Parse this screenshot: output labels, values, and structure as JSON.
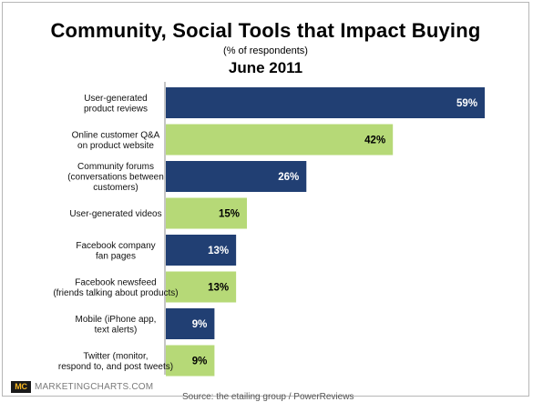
{
  "chart_data": {
    "type": "bar",
    "orientation": "horizontal",
    "title": "Community, Social Tools that Impact Buying",
    "subtitle": "(% of respondents)",
    "date": "June 2011",
    "categories": [
      [
        "User-generated",
        "product reviews"
      ],
      [
        "Online customer Q&A",
        "on product website"
      ],
      [
        "Community forums",
        "(conversations between",
        "customers)"
      ],
      [
        "User-generated videos"
      ],
      [
        "Facebook company",
        "fan pages"
      ],
      [
        "Facebook newsfeed",
        "(friends talking about products)"
      ],
      [
        "Mobile (iPhone app,",
        "text alerts)"
      ],
      [
        "Twitter (monitor,",
        "respond to, and post tweets)"
      ]
    ],
    "values": [
      59,
      42,
      26,
      15,
      13,
      13,
      9,
      9
    ],
    "data_labels": [
      "59%",
      "42%",
      "26%",
      "15%",
      "13%",
      "13%",
      "9%",
      "9%"
    ],
    "bar_colors": [
      "#213f73",
      "#b6d977",
      "#213f73",
      "#b6d977",
      "#213f73",
      "#b6d977",
      "#213f73",
      "#b6d977"
    ],
    "label_colors": [
      "#ffffff",
      "#000000",
      "#ffffff",
      "#000000",
      "#ffffff",
      "#000000",
      "#ffffff",
      "#000000"
    ],
    "xlim": [
      0,
      60
    ],
    "grid": false
  },
  "footer": {
    "logo": "MC",
    "brand": "MARKETINGCHARTS.COM",
    "source": "Source: the etailing group / PowerReviews"
  }
}
